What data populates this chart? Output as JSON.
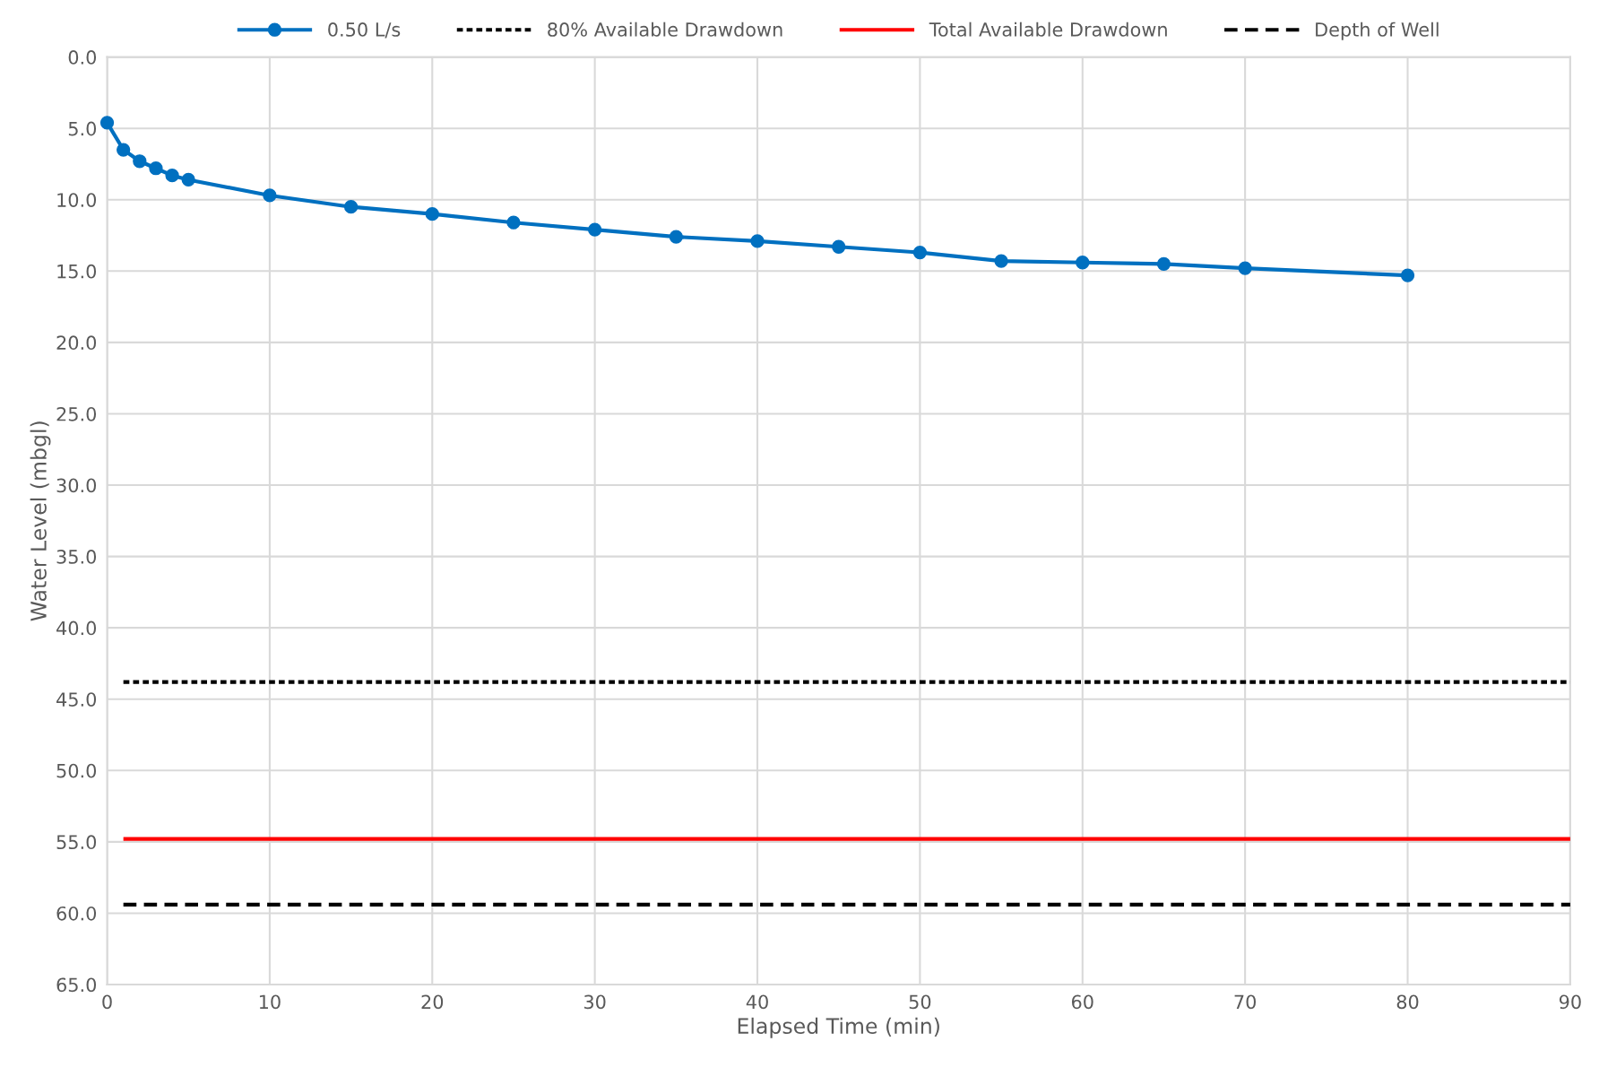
{
  "chart_data": {
    "type": "line",
    "xlabel": "Elapsed Time (min)",
    "ylabel": "Water Level (mbgl)",
    "xlim": [
      0,
      90
    ],
    "xticks": [
      0,
      10,
      20,
      30,
      40,
      50,
      60,
      70,
      80,
      90
    ],
    "ylim": [
      65,
      0
    ],
    "yticks": [
      {
        "value": 0,
        "label": "0.0"
      },
      {
        "value": 5,
        "label": "5.0"
      },
      {
        "value": 10,
        "label": "10.0"
      },
      {
        "value": 15,
        "label": "15.0"
      },
      {
        "value": 20,
        "label": "20.0"
      },
      {
        "value": 25,
        "label": "25.0"
      },
      {
        "value": 30,
        "label": "30.0"
      },
      {
        "value": 35,
        "label": "35.0"
      },
      {
        "value": 40,
        "label": "40.0"
      },
      {
        "value": 45,
        "label": "45.0"
      },
      {
        "value": 50,
        "label": "50.0"
      },
      {
        "value": 55,
        "label": "55.0"
      },
      {
        "value": 60,
        "label": "60.0"
      },
      {
        "value": 65,
        "label": "65.0"
      }
    ],
    "grid": true,
    "legend": "top",
    "series": [
      {
        "name": "0.50 L/s",
        "color": "#0070c0",
        "marker": "circle",
        "line_style": "solid",
        "x": [
          0,
          1,
          2,
          3,
          4,
          5,
          10,
          15,
          20,
          25,
          30,
          35,
          40,
          45,
          50,
          55,
          60,
          65,
          70,
          80
        ],
        "values": [
          4.6,
          6.5,
          7.3,
          7.8,
          8.3,
          8.6,
          9.7,
          10.5,
          11.0,
          11.6,
          12.1,
          12.6,
          12.9,
          13.3,
          13.7,
          14.3,
          14.4,
          14.5,
          14.8,
          15.3
        ]
      },
      {
        "name": "80% Available Drawdown",
        "color": "#000000",
        "marker": "none",
        "line_style": "dotted",
        "x": [
          1,
          90
        ],
        "values": [
          43.8,
          43.8
        ]
      },
      {
        "name": "Total Available Drawdown",
        "color": "#ff0000",
        "marker": "none",
        "line_style": "solid",
        "x": [
          1,
          90
        ],
        "values": [
          54.8,
          54.8
        ]
      },
      {
        "name": "Depth of Well",
        "color": "#000000",
        "marker": "none",
        "line_style": "dashed",
        "x": [
          1,
          90
        ],
        "values": [
          59.4,
          59.4
        ]
      }
    ]
  }
}
